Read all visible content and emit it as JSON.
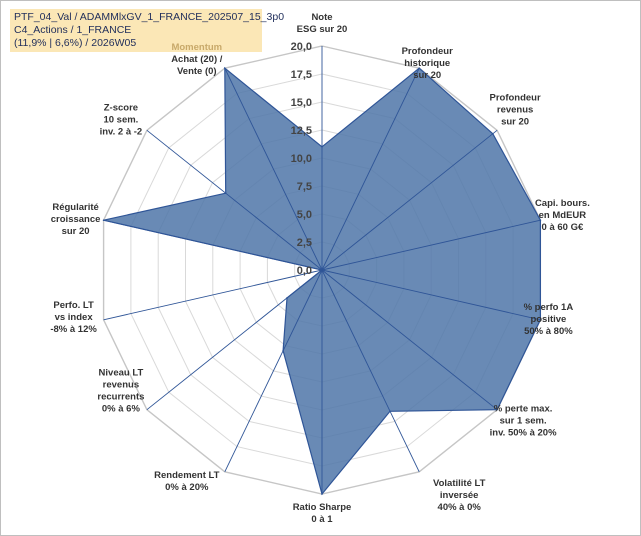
{
  "title_lines": [
    "PTF_04_Val / ADAMMlxGV_1_FRANCE_202507_15_3p0",
    "C4_Actions / 1_FRANCE",
    "(11,9% | 6,6%) / 2026W05"
  ],
  "colors": {
    "fill": "#4f76a8",
    "stroke": "#2f5597",
    "grid": "#d9d9d9",
    "spoke": "#2f5597",
    "title_bg": "#fbe7b6"
  },
  "chart_data": {
    "type": "radar",
    "rmin": 0,
    "rmax": 20,
    "ticks": [
      "0,0",
      "2,5",
      "5,0",
      "7,5",
      "10,0",
      "12,5",
      "15,0",
      "17,5",
      "20,0"
    ],
    "tick_values": [
      0,
      2.5,
      5,
      7.5,
      10,
      12.5,
      15,
      17.5,
      20
    ],
    "axes": [
      {
        "label": [
          "Note",
          "ESG sur 20"
        ]
      },
      {
        "label": [
          "Profondeur",
          "historique",
          "sur 20"
        ]
      },
      {
        "label": [
          "Profondeur",
          "revenus",
          "sur 20"
        ]
      },
      {
        "label": [
          "Capi. bours.",
          "en MdEUR",
          "0 à 60 G€"
        ]
      },
      {
        "label": [
          "% perfo 1A",
          "positive",
          "50% à 80%"
        ]
      },
      {
        "label": [
          "% perte max.",
          "sur 1 sem.",
          "inv. 50% à 20%"
        ]
      },
      {
        "label": [
          "Volatilité LT",
          "inversée",
          "40% à 0%"
        ]
      },
      {
        "label": [
          "Ratio Sharpe",
          "0 à 1"
        ]
      },
      {
        "label": [
          "Rendement LT",
          "0% à 20%"
        ]
      },
      {
        "label": [
          "Niveau LT",
          "revenus",
          "recurrents",
          "0% à 6%"
        ]
      },
      {
        "label": [
          "Perfo. LT",
          "vs index",
          "-8% à 12%"
        ]
      },
      {
        "label": [
          "Régularité",
          "croissance",
          "sur 20"
        ]
      },
      {
        "label": [
          "Z-score",
          "10 sem.",
          "inv. 2 à -2"
        ]
      },
      {
        "label": [
          "Momentum",
          "Achat (20) /",
          "Vente (0)"
        ],
        "highlight_first": true
      }
    ],
    "series": [
      {
        "values": [
          11,
          20,
          19.5,
          20,
          20,
          20,
          14,
          20,
          8,
          4,
          0,
          20,
          11,
          20
        ]
      }
    ]
  }
}
